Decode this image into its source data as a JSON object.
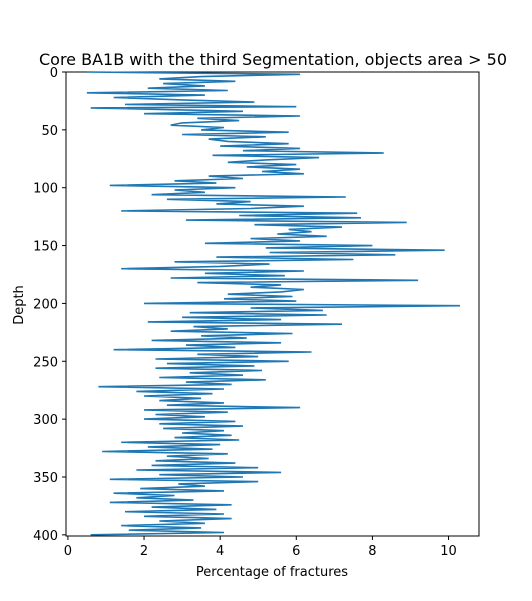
{
  "chart_data": {
    "type": "line",
    "title": "Core BA1B with the third Segmentation, objects area > 50",
    "xlabel": "Percentage of fractures",
    "ylabel": "Depth",
    "xlim": [
      -0.05,
      10.8
    ],
    "ylim": [
      401,
      0
    ],
    "y_inverted": true,
    "xticks": [
      0,
      2,
      4,
      6,
      8,
      10
    ],
    "yticks": [
      0,
      50,
      100,
      150,
      200,
      250,
      300,
      350,
      400
    ],
    "grid": false,
    "line_color": "#1f77b4",
    "series": [
      {
        "name": "",
        "points": [
          [
            0.5,
            0
          ],
          [
            6.1,
            2
          ],
          [
            3.5,
            4
          ],
          [
            2.4,
            6
          ],
          [
            4.4,
            8
          ],
          [
            2.5,
            10
          ],
          [
            3.6,
            12
          ],
          [
            2.1,
            14
          ],
          [
            4.2,
            16
          ],
          [
            0.5,
            18
          ],
          [
            3.6,
            20
          ],
          [
            1.2,
            22
          ],
          [
            2.9,
            24
          ],
          [
            4.9,
            26
          ],
          [
            1.5,
            28
          ],
          [
            6.0,
            30
          ],
          [
            0.6,
            31
          ],
          [
            4.6,
            34
          ],
          [
            2.0,
            36
          ],
          [
            6.1,
            38
          ],
          [
            3.4,
            40
          ],
          [
            4.5,
            42
          ],
          [
            3.0,
            44
          ],
          [
            2.7,
            46
          ],
          [
            4.1,
            48
          ],
          [
            3.5,
            50
          ],
          [
            5.8,
            52
          ],
          [
            3.0,
            54
          ],
          [
            5.2,
            56
          ],
          [
            3.7,
            58
          ],
          [
            4.2,
            60
          ],
          [
            5.8,
            62
          ],
          [
            4.0,
            64
          ],
          [
            6.1,
            66
          ],
          [
            4.6,
            68
          ],
          [
            8.3,
            70
          ],
          [
            3.8,
            72
          ],
          [
            6.6,
            74
          ],
          [
            5.2,
            76
          ],
          [
            4.2,
            78
          ],
          [
            6.0,
            80
          ],
          [
            4.7,
            82
          ],
          [
            6.1,
            84
          ],
          [
            5.1,
            86
          ],
          [
            6.2,
            88
          ],
          [
            3.7,
            90
          ],
          [
            4.6,
            92
          ],
          [
            2.8,
            94
          ],
          [
            3.9,
            96
          ],
          [
            1.1,
            98
          ],
          [
            4.4,
            100
          ],
          [
            2.8,
            102
          ],
          [
            3.6,
            104
          ],
          [
            2.2,
            106
          ],
          [
            7.3,
            108
          ],
          [
            2.6,
            110
          ],
          [
            4.8,
            112
          ],
          [
            3.9,
            114
          ],
          [
            6.2,
            116
          ],
          [
            4.8,
            118
          ],
          [
            1.4,
            120
          ],
          [
            7.6,
            122
          ],
          [
            4.5,
            124
          ],
          [
            7.7,
            126
          ],
          [
            3.1,
            128
          ],
          [
            8.9,
            130
          ],
          [
            4.9,
            132
          ],
          [
            7.2,
            134
          ],
          [
            5.8,
            136
          ],
          [
            6.4,
            138
          ],
          [
            5.5,
            140
          ],
          [
            6.8,
            142
          ],
          [
            4.8,
            144
          ],
          [
            6.1,
            146
          ],
          [
            3.6,
            148
          ],
          [
            8.0,
            150
          ],
          [
            5.2,
            152
          ],
          [
            9.9,
            154
          ],
          [
            5.3,
            156
          ],
          [
            8.6,
            158
          ],
          [
            3.9,
            160
          ],
          [
            7.5,
            162
          ],
          [
            2.8,
            164
          ],
          [
            5.3,
            166
          ],
          [
            4.0,
            168
          ],
          [
            1.4,
            170
          ],
          [
            6.2,
            172
          ],
          [
            3.6,
            174
          ],
          [
            5.7,
            176
          ],
          [
            2.7,
            178
          ],
          [
            9.2,
            180
          ],
          [
            3.4,
            182
          ],
          [
            5.6,
            184
          ],
          [
            4.8,
            186
          ],
          [
            6.2,
            188
          ],
          [
            5.6,
            190
          ],
          [
            4.2,
            192
          ],
          [
            5.9,
            194
          ],
          [
            4.1,
            196
          ],
          [
            6.0,
            198
          ],
          [
            2.0,
            200
          ],
          [
            10.3,
            202
          ],
          [
            4.8,
            204
          ],
          [
            6.7,
            206
          ],
          [
            3.2,
            208
          ],
          [
            6.8,
            210
          ],
          [
            3.0,
            212
          ],
          [
            5.6,
            214
          ],
          [
            2.1,
            216
          ],
          [
            7.2,
            218
          ],
          [
            3.3,
            220
          ],
          [
            4.2,
            222
          ],
          [
            2.7,
            224
          ],
          [
            5.9,
            226
          ],
          [
            3.5,
            228
          ],
          [
            4.7,
            230
          ],
          [
            2.2,
            232
          ],
          [
            5.6,
            234
          ],
          [
            3.1,
            236
          ],
          [
            4.4,
            238
          ],
          [
            1.2,
            240
          ],
          [
            6.4,
            242
          ],
          [
            3.4,
            244
          ],
          [
            5.0,
            246
          ],
          [
            2.3,
            248
          ],
          [
            5.8,
            250
          ],
          [
            2.6,
            252
          ],
          [
            4.9,
            254
          ],
          [
            2.3,
            256
          ],
          [
            5.1,
            258
          ],
          [
            3.2,
            260
          ],
          [
            4.6,
            262
          ],
          [
            2.4,
            264
          ],
          [
            5.2,
            266
          ],
          [
            3.1,
            268
          ],
          [
            4.3,
            270
          ],
          [
            0.8,
            272
          ],
          [
            4.1,
            274
          ],
          [
            1.8,
            276
          ],
          [
            3.8,
            278
          ],
          [
            2.0,
            280
          ],
          [
            3.5,
            282
          ],
          [
            2.4,
            284
          ],
          [
            4.1,
            286
          ],
          [
            2.6,
            288
          ],
          [
            6.1,
            290
          ],
          [
            2.0,
            292
          ],
          [
            4.2,
            294
          ],
          [
            2.3,
            296
          ],
          [
            3.6,
            298
          ],
          [
            2.0,
            300
          ],
          [
            4.4,
            302
          ],
          [
            2.4,
            304
          ],
          [
            4.6,
            306
          ],
          [
            2.5,
            308
          ],
          [
            4.1,
            310
          ],
          [
            3.0,
            312
          ],
          [
            4.3,
            314
          ],
          [
            2.8,
            316
          ],
          [
            4.5,
            318
          ],
          [
            1.4,
            320
          ],
          [
            4.0,
            322
          ],
          [
            2.1,
            324
          ],
          [
            3.8,
            326
          ],
          [
            0.9,
            328
          ],
          [
            4.2,
            330
          ],
          [
            2.6,
            332
          ],
          [
            3.7,
            334
          ],
          [
            2.3,
            336
          ],
          [
            4.4,
            338
          ],
          [
            2.2,
            340
          ],
          [
            5.0,
            342
          ],
          [
            1.8,
            344
          ],
          [
            5.6,
            346
          ],
          [
            2.4,
            348
          ],
          [
            4.6,
            350
          ],
          [
            1.1,
            352
          ],
          [
            5.0,
            354
          ],
          [
            2.9,
            356
          ],
          [
            3.6,
            358
          ],
          [
            1.9,
            360
          ],
          [
            4.1,
            362
          ],
          [
            1.2,
            364
          ],
          [
            2.8,
            366
          ],
          [
            1.8,
            368
          ],
          [
            3.3,
            370
          ],
          [
            1.1,
            372
          ],
          [
            4.3,
            374
          ],
          [
            2.2,
            376
          ],
          [
            3.9,
            378
          ],
          [
            1.5,
            380
          ],
          [
            4.1,
            382
          ],
          [
            2.0,
            384
          ],
          [
            4.3,
            386
          ],
          [
            2.4,
            388
          ],
          [
            3.6,
            390
          ],
          [
            1.4,
            392
          ],
          [
            3.5,
            394
          ],
          [
            1.6,
            396
          ],
          [
            4.1,
            398
          ],
          [
            0.6,
            400
          ]
        ]
      }
    ]
  }
}
